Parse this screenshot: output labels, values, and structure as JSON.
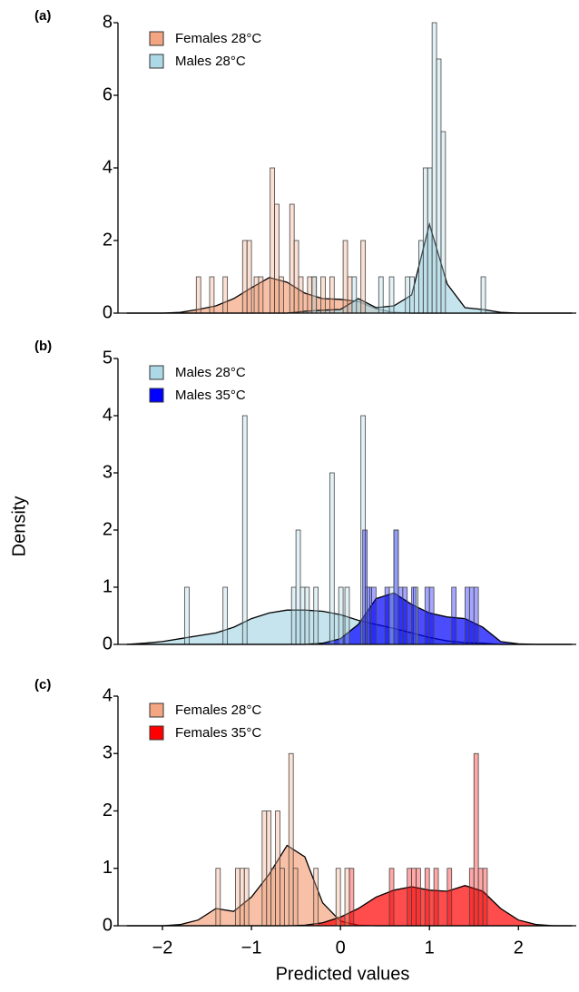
{
  "chart_data": [
    {
      "type": "histogram",
      "panel_label": "(a)",
      "xlim": [
        -2.5,
        2.65
      ],
      "ylim": [
        0,
        8
      ],
      "yticks": [
        0,
        2,
        4,
        6,
        8
      ],
      "density_x": [
        -2.4,
        -2.2,
        -2.0,
        -1.8,
        -1.6,
        -1.4,
        -1.2,
        -1.0,
        -0.8,
        -0.6,
        -0.4,
        -0.2,
        0,
        0.2,
        0.4,
        0.6,
        0.8,
        1.0,
        1.2,
        1.4,
        1.6,
        1.8,
        2.0,
        2.2,
        2.4,
        2.6
      ],
      "series": [
        {
          "name": "Females 28°C",
          "color": "#f4a582",
          "bins": [
            [
              -1.62,
              -1.57
            ],
            [
              -1.47,
              -1.42
            ],
            [
              -1.32,
              -1.27
            ],
            [
              -1.1,
              -1.05
            ],
            [
              -1.05,
              -1.0
            ],
            [
              -0.97,
              -0.92
            ],
            [
              -0.92,
              -0.87
            ],
            [
              -0.79,
              -0.74
            ],
            [
              -0.74,
              -0.69
            ],
            [
              -0.69,
              -0.64
            ],
            [
              -0.57,
              -0.52
            ],
            [
              -0.52,
              -0.47
            ],
            [
              -0.47,
              -0.42
            ],
            [
              -0.37,
              -0.32
            ],
            [
              -0.32,
              -0.27
            ],
            [
              -0.22,
              -0.17
            ],
            [
              -0.12,
              -0.07
            ],
            [
              0.03,
              0.08
            ],
            [
              0.08,
              0.13
            ],
            [
              0.23,
              0.28
            ]
          ],
          "values": [
            1,
            1,
            1,
            2,
            2,
            1,
            1,
            4,
            3,
            1,
            3,
            2,
            1,
            1,
            1,
            1,
            1,
            2,
            1,
            2
          ],
          "density": [
            0,
            0,
            0,
            0.02,
            0.1,
            0.2,
            0.4,
            0.7,
            0.98,
            0.85,
            0.55,
            0.4,
            0.38,
            0.32,
            0.12,
            0.02,
            0,
            0,
            0,
            0,
            0,
            0,
            0,
            0,
            0,
            0
          ]
        },
        {
          "name": "Males 28°C",
          "color": "#add8e6",
          "bins": [
            [
              -0.32,
              -0.27
            ],
            [
              0.13,
              0.18
            ],
            [
              0.43,
              0.48
            ],
            [
              0.55,
              0.6
            ],
            [
              0.73,
              0.78
            ],
            [
              0.78,
              0.83
            ],
            [
              0.88,
              0.93
            ],
            [
              0.93,
              0.98
            ],
            [
              0.98,
              1.03
            ],
            [
              1.03,
              1.08
            ],
            [
              1.08,
              1.13
            ],
            [
              1.13,
              1.18
            ],
            [
              1.58,
              1.63
            ]
          ],
          "values": [
            1,
            1,
            1,
            1,
            1,
            1,
            2,
            4,
            4,
            8,
            7,
            5,
            1
          ],
          "density": [
            0,
            0,
            0,
            0,
            0,
            0,
            0,
            0,
            0,
            0,
            0.05,
            0.08,
            0.1,
            0.4,
            0.15,
            0.2,
            0.5,
            2.45,
            0.8,
            0.15,
            0.1,
            0.02,
            0,
            0,
            0,
            0
          ]
        }
      ]
    },
    {
      "type": "histogram",
      "panel_label": "(b)",
      "y_label": "Density",
      "xlim": [
        -2.5,
        2.65
      ],
      "ylim": [
        0,
        5
      ],
      "yticks": [
        0,
        1,
        2,
        3,
        4,
        5
      ],
      "density_x": [
        -2.4,
        -2.2,
        -2.0,
        -1.8,
        -1.6,
        -1.4,
        -1.2,
        -1.0,
        -0.8,
        -0.6,
        -0.4,
        -0.2,
        0,
        0.2,
        0.4,
        0.6,
        0.8,
        1.0,
        1.2,
        1.4,
        1.6,
        1.8,
        2.0,
        2.2,
        2.4,
        2.6
      ],
      "series": [
        {
          "name": "Males 28°C",
          "color": "#add8e6",
          "bins": [
            [
              -1.75,
              -1.7
            ],
            [
              -1.32,
              -1.27
            ],
            [
              -1.1,
              -1.05
            ],
            [
              -0.55,
              -0.5
            ],
            [
              -0.5,
              -0.45
            ],
            [
              -0.45,
              -0.4
            ],
            [
              -0.4,
              -0.35
            ],
            [
              -0.3,
              -0.25
            ],
            [
              -0.12,
              -0.07
            ],
            [
              -0.02,
              0.03
            ],
            [
              0.05,
              0.1
            ],
            [
              0.23,
              0.28
            ],
            [
              0.28,
              0.33
            ],
            [
              0.55,
              0.6
            ],
            [
              0.6,
              0.65
            ],
            [
              0.82,
              0.87
            ]
          ],
          "values": [
            1,
            1,
            4,
            1,
            2,
            1,
            1,
            1,
            3,
            1,
            1,
            4,
            1,
            1,
            2,
            1
          ],
          "density": [
            0,
            0.02,
            0.05,
            0.1,
            0.15,
            0.2,
            0.3,
            0.45,
            0.55,
            0.6,
            0.6,
            0.58,
            0.52,
            0.42,
            0.35,
            0.28,
            0.2,
            0.12,
            0.06,
            0.03,
            0.02,
            0,
            0,
            0,
            0,
            0
          ]
        },
        {
          "name": "Males 35°C",
          "color": "#0000ff",
          "bins": [
            [
              0.25,
              0.3
            ],
            [
              0.3,
              0.35
            ],
            [
              0.35,
              0.4
            ],
            [
              0.5,
              0.55
            ],
            [
              0.6,
              0.65
            ],
            [
              0.65,
              0.7
            ],
            [
              0.7,
              0.75
            ],
            [
              0.8,
              0.85
            ],
            [
              0.95,
              1.0
            ],
            [
              1.0,
              1.05
            ],
            [
              1.25,
              1.3
            ],
            [
              1.4,
              1.45
            ],
            [
              1.45,
              1.5
            ],
            [
              1.5,
              1.55
            ]
          ],
          "values": [
            2,
            1,
            1,
            1,
            2,
            1,
            1,
            1,
            1,
            1,
            1,
            1,
            1,
            1
          ],
          "density": [
            0,
            0,
            0,
            0,
            0,
            0,
            0,
            0,
            0,
            0,
            0,
            0.02,
            0.1,
            0.35,
            0.8,
            0.9,
            0.7,
            0.55,
            0.48,
            0.45,
            0.3,
            0.05,
            0.01,
            0,
            0,
            0
          ]
        }
      ]
    },
    {
      "type": "histogram",
      "panel_label": "(c)",
      "x_label": "Predicted values",
      "xlim": [
        -2.5,
        2.65
      ],
      "ylim": [
        0,
        4
      ],
      "yticks": [
        0,
        1,
        2,
        3,
        4
      ],
      "xticks": [
        {
          "value": -2,
          "label": "−2"
        },
        {
          "value": -1,
          "label": "−1"
        },
        0,
        1,
        2
      ],
      "density_x": [
        -2.4,
        -2.2,
        -2.0,
        -1.8,
        -1.6,
        -1.4,
        -1.2,
        -1.0,
        -0.8,
        -0.6,
        -0.4,
        -0.2,
        0,
        0.2,
        0.4,
        0.6,
        0.8,
        1.0,
        1.2,
        1.4,
        1.6,
        1.8,
        2.0,
        2.2,
        2.4,
        2.6
      ],
      "series": [
        {
          "name": "Females 28°C",
          "color": "#f4a582",
          "bins": [
            [
              -1.4,
              -1.35
            ],
            [
              -1.18,
              -1.13
            ],
            [
              -1.13,
              -1.08
            ],
            [
              -1.08,
              -1.03
            ],
            [
              -0.88,
              -0.83
            ],
            [
              -0.83,
              -0.78
            ],
            [
              -0.78,
              -0.73
            ],
            [
              -0.73,
              -0.68
            ],
            [
              -0.68,
              -0.63
            ],
            [
              -0.58,
              -0.53
            ],
            [
              -0.53,
              -0.48
            ],
            [
              -0.3,
              -0.25
            ],
            [
              -0.05,
              0.0
            ],
            [
              0.05,
              0.1
            ]
          ],
          "values": [
            1,
            1,
            1,
            1,
            2,
            2,
            1,
            2,
            1,
            3,
            1,
            1,
            1,
            1
          ],
          "density": [
            0,
            0,
            0,
            0.02,
            0.1,
            0.3,
            0.25,
            0.5,
            0.9,
            1.4,
            1.2,
            0.4,
            0.08,
            0.01,
            0,
            0,
            0,
            0,
            0,
            0,
            0,
            0,
            0,
            0,
            0,
            0
          ]
        },
        {
          "name": "Females 35°C",
          "color": "#ff0000",
          "bins": [
            [
              0.1,
              0.15
            ],
            [
              0.55,
              0.6
            ],
            [
              0.75,
              0.8
            ],
            [
              0.8,
              0.85
            ],
            [
              0.85,
              0.9
            ],
            [
              0.95,
              1.0
            ],
            [
              1.05,
              1.1
            ],
            [
              1.2,
              1.25
            ],
            [
              1.45,
              1.5
            ],
            [
              1.5,
              1.55
            ],
            [
              1.55,
              1.6
            ],
            [
              1.6,
              1.65
            ]
          ],
          "values": [
            1,
            1,
            1,
            1,
            1,
            1,
            1,
            1,
            1,
            3,
            1,
            1
          ],
          "density": [
            0,
            0,
            0,
            0,
            0,
            0,
            0,
            0,
            0,
            0,
            0.01,
            0.05,
            0.15,
            0.3,
            0.5,
            0.62,
            0.68,
            0.62,
            0.6,
            0.7,
            0.6,
            0.3,
            0.1,
            0.02,
            0,
            0
          ]
        }
      ]
    }
  ]
}
